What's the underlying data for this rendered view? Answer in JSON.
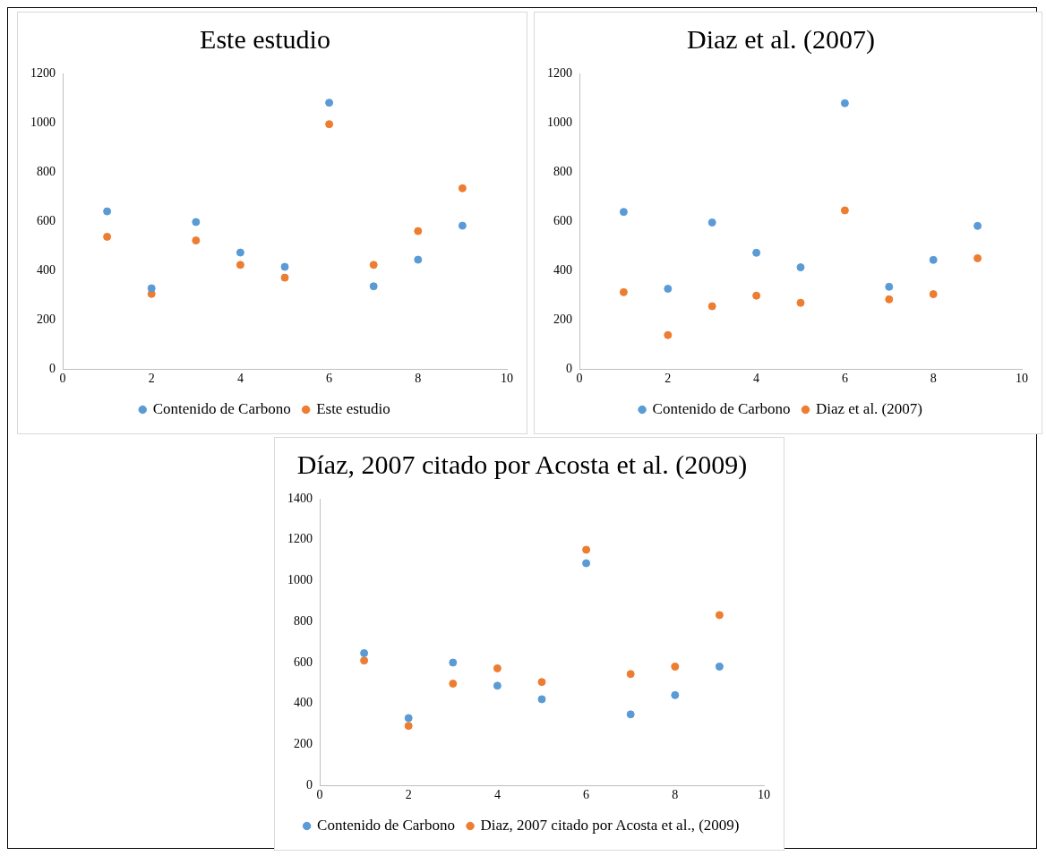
{
  "chart_data": [
    {
      "type": "scatter",
      "title": "Este estudio",
      "x": [
        1,
        2,
        3,
        4,
        5,
        6,
        7,
        8,
        9
      ],
      "xlim": [
        0,
        10
      ],
      "xticks": [
        0,
        2,
        4,
        6,
        8,
        10
      ],
      "ylim": [
        0,
        1200
      ],
      "yticks": [
        0,
        200,
        400,
        600,
        800,
        1000,
        1200
      ],
      "grid": false,
      "legend": "bottom",
      "marker": "circle",
      "series": [
        {
          "name": "Contenido de Carbono",
          "color": "#5b9bd5",
          "values": [
            640,
            328,
            597,
            473,
            415,
            1081,
            336,
            444,
            582
          ]
        },
        {
          "name": "Este estudio",
          "color": "#ed7d31",
          "values": [
            537,
            305,
            522,
            423,
            371,
            994,
            423,
            560,
            734
          ]
        }
      ]
    },
    {
      "type": "scatter",
      "title": "Diaz et al. (2007)",
      "x": [
        1,
        2,
        3,
        4,
        5,
        6,
        7,
        8,
        9
      ],
      "xlim": [
        0,
        10
      ],
      "xticks": [
        0,
        2,
        4,
        6,
        8,
        10
      ],
      "ylim": [
        0,
        1200
      ],
      "yticks": [
        0,
        200,
        400,
        600,
        800,
        1000,
        1200
      ],
      "grid": false,
      "legend": "bottom",
      "marker": "circle",
      "series": [
        {
          "name": "Contenido de Carbono",
          "color": "#5b9bd5",
          "values": [
            638,
            326,
            595,
            472,
            413,
            1079,
            334,
            443,
            581
          ]
        },
        {
          "name": "Diaz et al. (2007)",
          "color": "#ed7d31",
          "values": [
            312,
            138,
            255,
            298,
            269,
            644,
            283,
            304,
            450
          ]
        }
      ]
    },
    {
      "type": "scatter",
      "title": "Díaz, 2007 citado por Acosta et al. (2009)",
      "x": [
        1,
        2,
        3,
        4,
        5,
        6,
        7,
        8,
        9
      ],
      "xlim": [
        0,
        10
      ],
      "xticks": [
        0,
        2,
        4,
        6,
        8,
        10
      ],
      "ylim": [
        0,
        1400
      ],
      "yticks": [
        0,
        200,
        400,
        600,
        800,
        1000,
        1200,
        1400
      ],
      "grid": false,
      "legend": "bottom",
      "marker": "circle",
      "series": [
        {
          "name": "Contenido de Carbono",
          "color": "#5b9bd5",
          "values": [
            646,
            329,
            600,
            487,
            421,
            1085,
            347,
            441,
            580
          ]
        },
        {
          "name": "Diaz, 2007 citado por Acosta et al., (2009)",
          "color": "#ed7d31",
          "values": [
            610,
            291,
            497,
            572,
            505,
            1151,
            544,
            580,
            832
          ]
        }
      ]
    }
  ]
}
